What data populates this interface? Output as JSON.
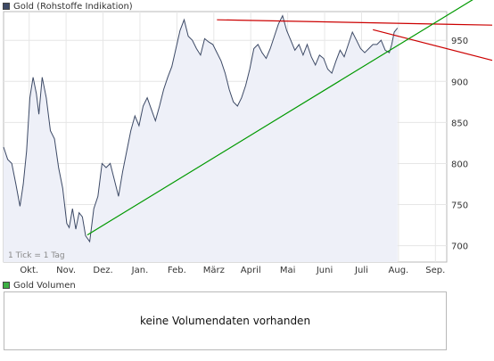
{
  "price_panel": {
    "legend_label": "Gold (Rohstoffe Indikation)",
    "legend_color": "#3d4a66",
    "tick_note": "1 Tick = 1 Tag"
  },
  "volume_panel": {
    "legend_label": "Gold Volumen",
    "legend_color": "#3cb043",
    "empty_message": "keine Volumendaten vorhanden"
  },
  "chart_data": {
    "type": "line",
    "title": "Gold (Rohstoffe Indikation)",
    "x_tick_labels": [
      "Okt.",
      "Nov.",
      "Dez.",
      "Jan.",
      "Feb.",
      "März",
      "April",
      "Mai",
      "Juni",
      "Juli",
      "Aug.",
      "Sep."
    ],
    "y_tick_labels": [
      700,
      750,
      800,
      850,
      900,
      950
    ],
    "ylim": [
      680,
      985
    ],
    "xlim": [
      0,
      54
    ],
    "grid": true,
    "series": [
      {
        "name": "Gold (Rohstoffe Indikation)",
        "color": "#3d4a66",
        "fill": "#eef0f8",
        "x": [
          0,
          0.5,
          1,
          1.5,
          2,
          2.4,
          2.8,
          3.2,
          3.6,
          4,
          4.3,
          4.7,
          5.2,
          5.7,
          6.2,
          6.7,
          7.2,
          7.7,
          8,
          8.4,
          8.8,
          9.2,
          9.6,
          10,
          10.5,
          11,
          11.5,
          12,
          12.5,
          13,
          13.5,
          14,
          14.5,
          15,
          15.5,
          16,
          16.5,
          17,
          17.5,
          18,
          18.5,
          19,
          19.5,
          20,
          20.5,
          21,
          21.5,
          22,
          22.5,
          23,
          23.5,
          24,
          24.5,
          25,
          25.5,
          26,
          26.5,
          27,
          27.5,
          28,
          28.5,
          29,
          29.5,
          30,
          30.5,
          31,
          31.5,
          32,
          32.5,
          33,
          33.5,
          34,
          34.5,
          35,
          35.5,
          36,
          36.5,
          37,
          37.5,
          38,
          38.5,
          39,
          39.5,
          40,
          40.5,
          41,
          41.5,
          42,
          42.5,
          43,
          43.5,
          44,
          44.5,
          45,
          45.5,
          46,
          46.5,
          47,
          47.3,
          47.6,
          48
        ],
        "values": [
          820,
          805,
          800,
          775,
          748,
          775,
          815,
          880,
          905,
          885,
          860,
          905,
          880,
          840,
          830,
          795,
          770,
          727,
          722,
          745,
          720,
          740,
          735,
          712,
          705,
          745,
          760,
          800,
          795,
          800,
          780,
          760,
          790,
          815,
          840,
          858,
          846,
          870,
          880,
          866,
          852,
          870,
          890,
          905,
          918,
          940,
          962,
          975,
          955,
          950,
          940,
          932,
          952,
          948,
          945,
          935,
          925,
          910,
          890,
          875,
          870,
          880,
          895,
          915,
          940,
          945,
          935,
          928,
          940,
          955,
          970,
          980,
          962,
          950,
          938,
          945,
          932,
          945,
          930,
          920,
          932,
          928,
          915,
          910,
          925,
          938,
          930,
          945,
          960,
          950,
          940,
          935,
          940,
          945,
          945,
          950,
          938,
          935,
          945,
          960,
          965
        ]
      }
    ],
    "trendlines": [
      {
        "color": "#cc0000",
        "x": [
          26,
          52
        ],
        "y": [
          975,
          970
        ]
      },
      {
        "color": "#cc0000",
        "x": [
          45,
          52
        ],
        "y": [
          963,
          945
        ]
      },
      {
        "color": "#009900",
        "x": [
          10.2,
          52
        ],
        "y": [
          713,
          968
        ]
      }
    ]
  }
}
